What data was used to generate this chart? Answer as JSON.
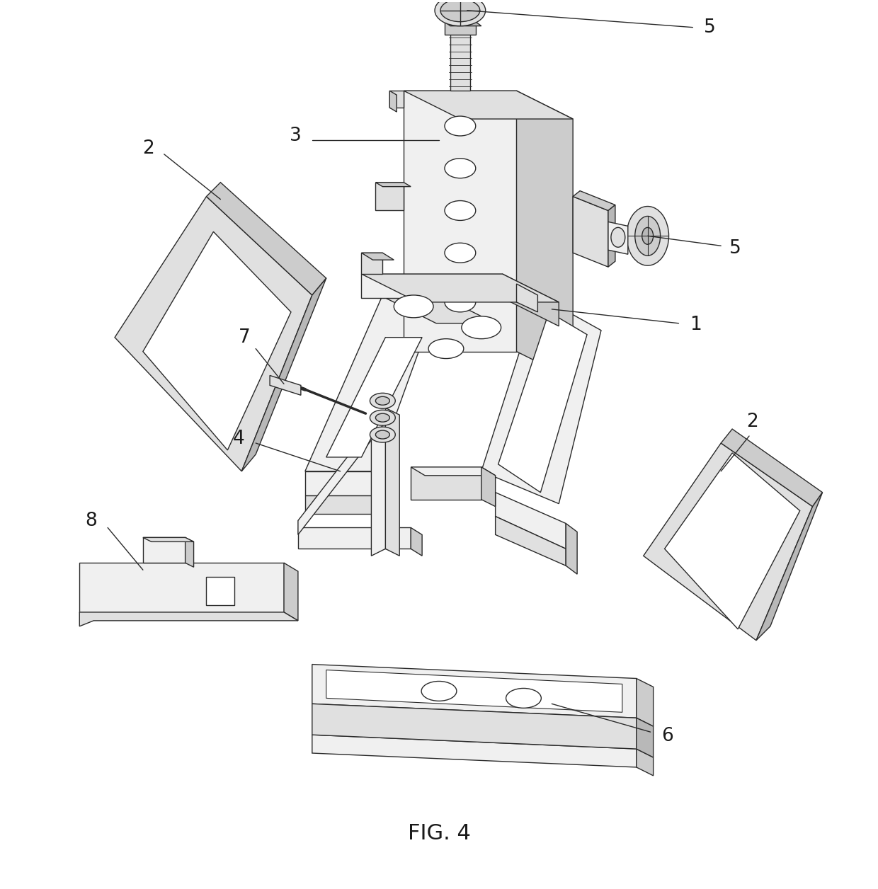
{
  "title": "FIG. 4",
  "background": "#ffffff",
  "line_color": "#2a2a2a",
  "line_width": 1.0,
  "fig_width": 12.4,
  "fig_height": 12.56,
  "shade_light": "#f0f0f0",
  "shade_mid": "#e0e0e0",
  "shade_dark": "#cccccc",
  "shade_darker": "#b8b8b8"
}
